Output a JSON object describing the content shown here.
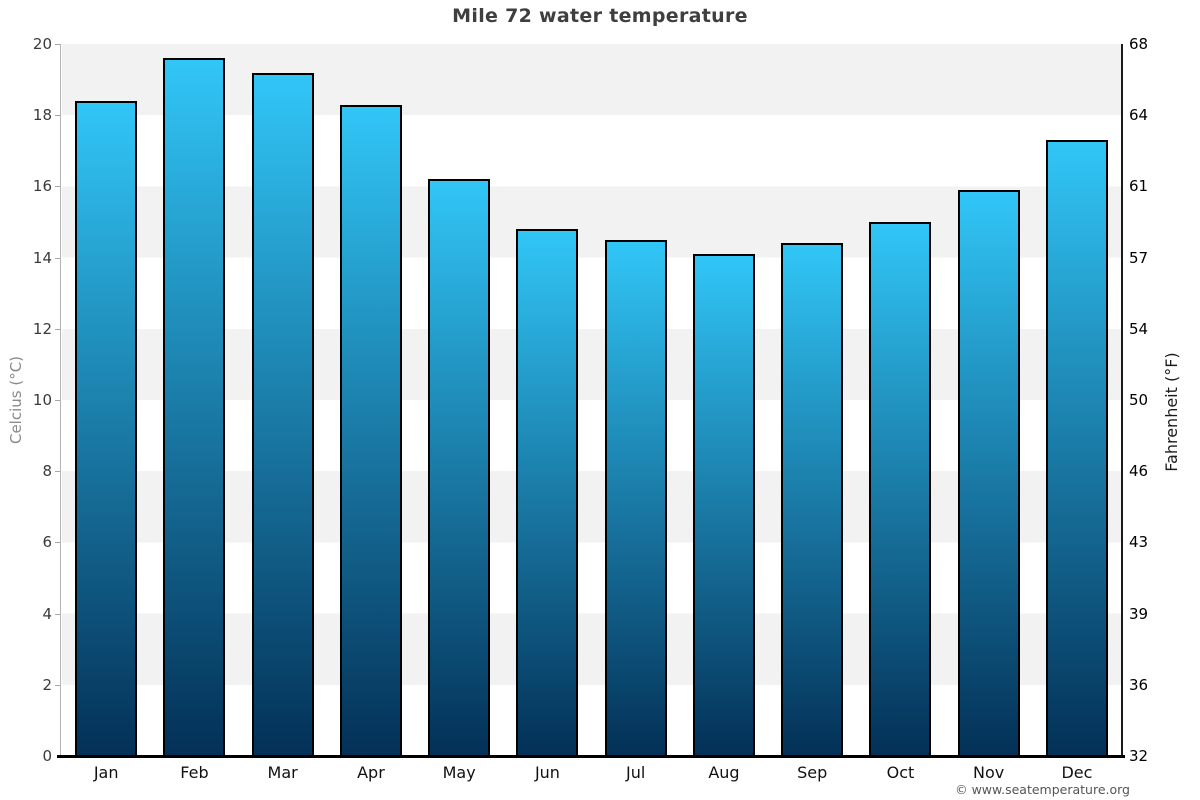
{
  "title": "Mile 72 water temperature",
  "footer": "© www.seatemperature.org",
  "chart_data": {
    "type": "bar",
    "title": "Mile 72 water temperature",
    "categories": [
      "Jan",
      "Feb",
      "Mar",
      "Apr",
      "May",
      "Jun",
      "Jul",
      "Aug",
      "Sep",
      "Oct",
      "Nov",
      "Dec"
    ],
    "values": [
      18.4,
      19.6,
      19.2,
      18.3,
      16.2,
      14.8,
      14.5,
      14.1,
      14.4,
      15.0,
      15.9,
      17.3
    ],
    "unit": "°C",
    "ylabel_left": "Celcius (°C)",
    "ylabel_right": "Fahrenheit (°F)",
    "ylim": [
      0,
      20
    ],
    "ytick_step": 2,
    "yticks_celsius": [
      0,
      2,
      4,
      6,
      8,
      10,
      12,
      14,
      16,
      18,
      20
    ],
    "yticks_fahrenheit_labels": [
      "32",
      "36",
      "39",
      "43",
      "46",
      "50",
      "54",
      "57",
      "61",
      "64",
      "68"
    ],
    "legend": "none",
    "grid": "alternating horizontal bands every 2°C, gray band at top (18-20)",
    "colors": {
      "bar_gradient_top": "#31c6f7",
      "bar_gradient_bottom": "#033056",
      "bar_border": "#000000",
      "band_gray": "#f2f2f2",
      "band_white": "#ffffff",
      "baseline": "#000000",
      "title_text": "#3f3f3f",
      "left_axis_spine": "#b3b3b3",
      "right_axis_spine": "#1a1a1a"
    }
  }
}
